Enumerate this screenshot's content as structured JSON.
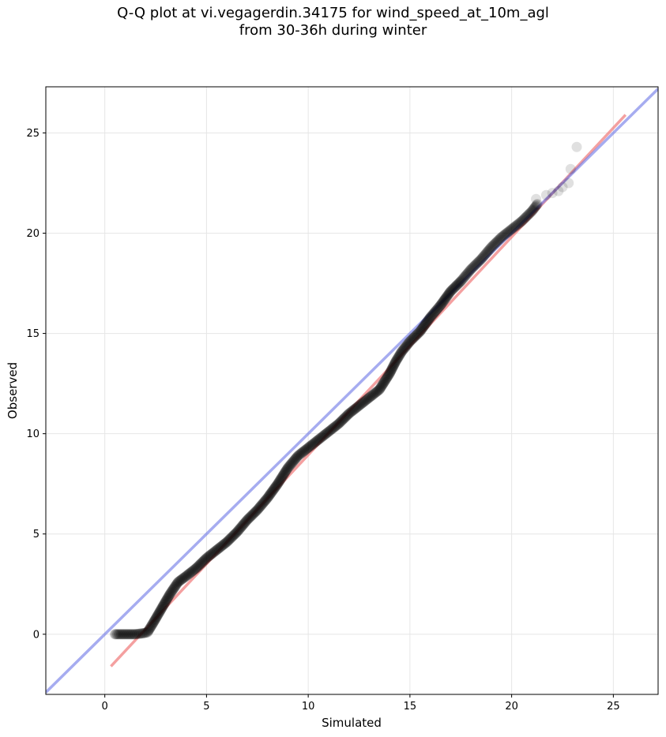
{
  "title_line1": "Q-Q plot at vi.vegagerdin.34175 for wind_speed_at_10m_agl",
  "title_line2": "from 30-36h during winter",
  "chart_data": {
    "type": "scatter",
    "title": "Q-Q plot at vi.vegagerdin.34175 for wind_speed_at_10m_agl from 30-36h during winter",
    "xlabel": "Simulated",
    "ylabel": "Observed",
    "xlim": [
      -2.9,
      27.2
    ],
    "ylim": [
      -3.0,
      27.3
    ],
    "x_ticks": [
      0,
      5,
      10,
      15,
      20,
      25
    ],
    "y_ticks": [
      0,
      5,
      10,
      15,
      20,
      25
    ],
    "x_tick_labels": [
      "0",
      "5",
      "10",
      "15",
      "20",
      "25"
    ],
    "y_tick_labels": [
      "0",
      "5",
      "10",
      "15",
      "20",
      "25"
    ],
    "grid": true,
    "colors": {
      "points": "#000000",
      "identity_line": "#6b74e6",
      "fit_line": "#f08080",
      "grid": "#e6e6e6"
    },
    "quantile_curve": {
      "x": [
        0.5,
        1.0,
        1.5,
        1.9,
        2.1,
        2.4,
        2.8,
        3.2,
        3.6,
        4.0,
        4.5,
        5.0,
        5.5,
        6.0,
        6.5,
        7.0,
        7.5,
        8.0,
        8.5,
        9.0,
        9.5,
        10.0,
        10.5,
        11.0,
        11.5,
        12.0,
        12.5,
        13.0,
        13.5,
        14.0,
        14.3,
        14.6,
        15.0,
        15.5,
        16.0,
        16.5,
        17.0,
        17.5,
        18.0,
        18.5,
        19.0,
        19.5,
        20.0,
        20.5,
        21.0,
        21.3
      ],
      "y": [
        0.0,
        0.0,
        0.0,
        0.05,
        0.1,
        0.6,
        1.3,
        2.0,
        2.6,
        2.9,
        3.3,
        3.8,
        4.2,
        4.6,
        5.1,
        5.7,
        6.2,
        6.8,
        7.5,
        8.3,
        8.9,
        9.3,
        9.7,
        10.1,
        10.5,
        11.0,
        11.4,
        11.8,
        12.2,
        13.0,
        13.6,
        14.1,
        14.6,
        15.1,
        15.8,
        16.4,
        17.1,
        17.6,
        18.2,
        18.7,
        19.3,
        19.8,
        20.2,
        20.6,
        21.1,
        21.5
      ]
    },
    "sparse_points": {
      "x": [
        21.2,
        21.7,
        22.0,
        22.3,
        22.5,
        22.8,
        22.9,
        23.2
      ],
      "y": [
        21.7,
        21.9,
        22.0,
        22.1,
        22.3,
        22.5,
        23.2,
        24.3
      ]
    },
    "identity_line": {
      "from": [
        -2.9,
        -2.9
      ],
      "to": [
        27.2,
        27.2
      ]
    },
    "fit_line": {
      "from": [
        0.3,
        -1.6
      ],
      "to": [
        25.6,
        25.9
      ]
    }
  }
}
